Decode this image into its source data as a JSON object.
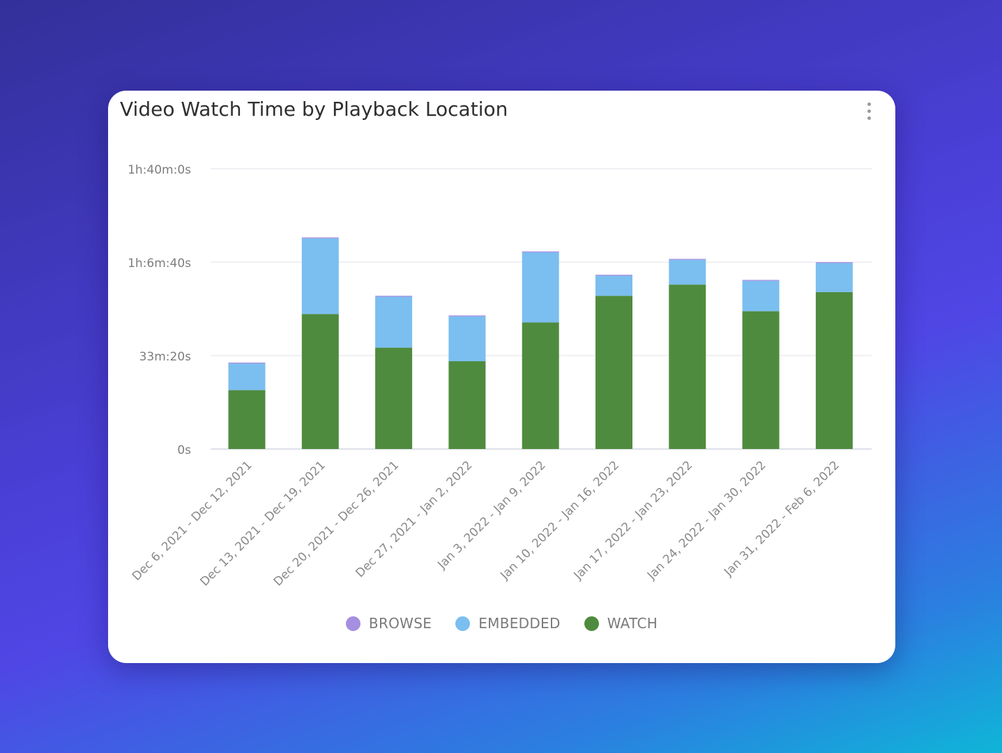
{
  "card": {
    "title": "Video Watch Time by Playback Location"
  },
  "chart_data": {
    "type": "bar",
    "stacked": true,
    "title": "Video Watch Time by Playback Location",
    "xlabel": "",
    "ylabel": "",
    "ylim_seconds": [
      0,
      6000
    ],
    "y_ticks": [
      {
        "value": 0,
        "label": "0s"
      },
      {
        "value": 2000,
        "label": "33m:20s"
      },
      {
        "value": 4000,
        "label": "1h:6m:40s"
      },
      {
        "value": 6000,
        "label": "1h:40m:0s"
      }
    ],
    "grid": true,
    "legend_position": "bottom-center",
    "categories": [
      "Dec 6, 2021 - Dec 12, 2021",
      "Dec 13, 2021 - Dec 19, 2021",
      "Dec 20, 2021 - Dec 26, 2021",
      "Dec 27, 2021 - Jan 2, 2022",
      "Jan 3, 2022 - Jan 9, 2022",
      "Jan 10, 2022 - Jan 16, 2022",
      "Jan 17, 2022 - Jan 23, 2022",
      "Jan 24, 2022 - Jan 30, 2022",
      "Jan 31, 2022 - Feb 6, 2022"
    ],
    "series": [
      {
        "name": "WATCH",
        "color": "#4f8b3e",
        "values": [
          1260,
          2890,
          2170,
          1880,
          2710,
          3280,
          3520,
          2950,
          3360
        ]
      },
      {
        "name": "EMBEDDED",
        "color": "#7bbef0",
        "values": [
          570,
          1620,
          1090,
          960,
          1500,
          430,
          530,
          650,
          620
        ]
      },
      {
        "name": "BROWSE",
        "color": "#a48fe0",
        "values": [
          20,
          20,
          20,
          20,
          20,
          20,
          20,
          20,
          20
        ]
      }
    ]
  },
  "legend": [
    {
      "label": "BROWSE",
      "color": "#a48fe0"
    },
    {
      "label": "EMBEDDED",
      "color": "#7bbef0"
    },
    {
      "label": "WATCH",
      "color": "#4f8b3e"
    }
  ]
}
